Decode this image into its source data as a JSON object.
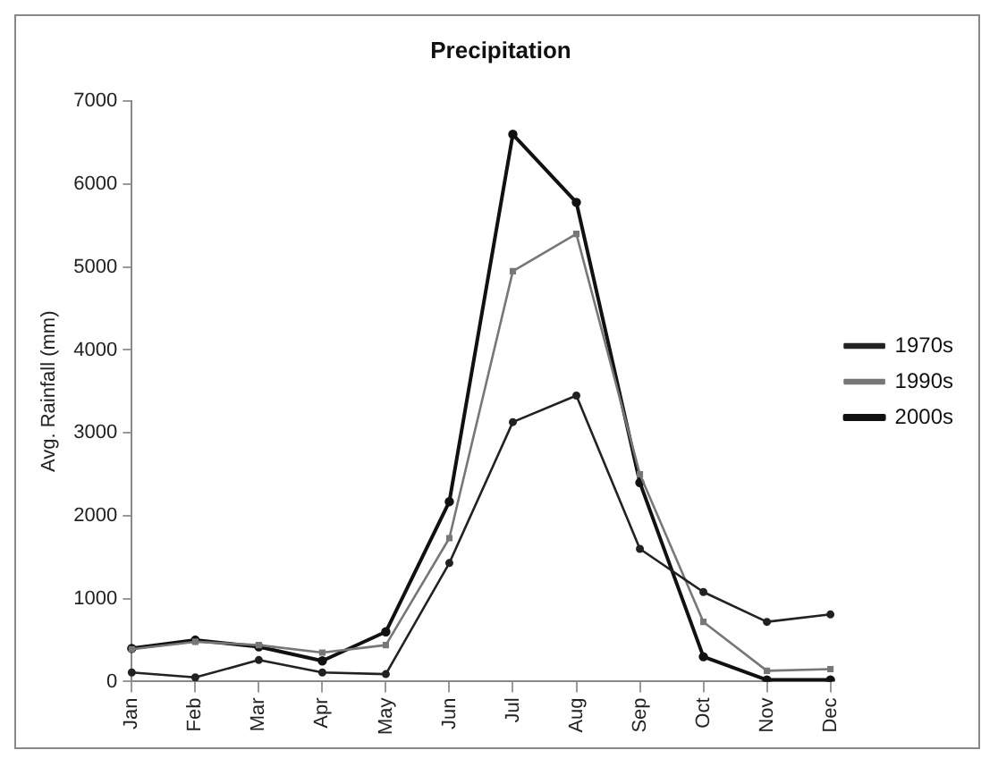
{
  "chart_data": {
    "type": "line",
    "title": "Precipitation",
    "ylabel": "Avg. Rainfall (mm)",
    "categories": [
      "Jan",
      "Feb",
      "Mar",
      "Apr",
      "May",
      "Jun",
      "Jul",
      "Aug",
      "Sep",
      "Oct",
      "Nov",
      "Dec"
    ],
    "series": [
      {
        "name": "1970s",
        "color": "#222222",
        "marker": "circle",
        "values": [
          110,
          50,
          260,
          110,
          90,
          1430,
          3130,
          3450,
          1600,
          1080,
          720,
          810
        ]
      },
      {
        "name": "1990s",
        "color": "#777777",
        "marker": "square",
        "values": [
          390,
          480,
          440,
          350,
          440,
          1730,
          4950,
          5400,
          2500,
          720,
          130,
          150
        ]
      },
      {
        "name": "2000s",
        "color": "#111111",
        "marker": "circle",
        "values": [
          400,
          500,
          420,
          250,
          600,
          2170,
          6600,
          5780,
          2400,
          300,
          20,
          20
        ]
      }
    ],
    "ylim": [
      0,
      7000
    ],
    "yticks": [
      0,
      1000,
      2000,
      3000,
      4000,
      5000,
      6000,
      7000
    ],
    "grid": false,
    "legend": "right"
  }
}
